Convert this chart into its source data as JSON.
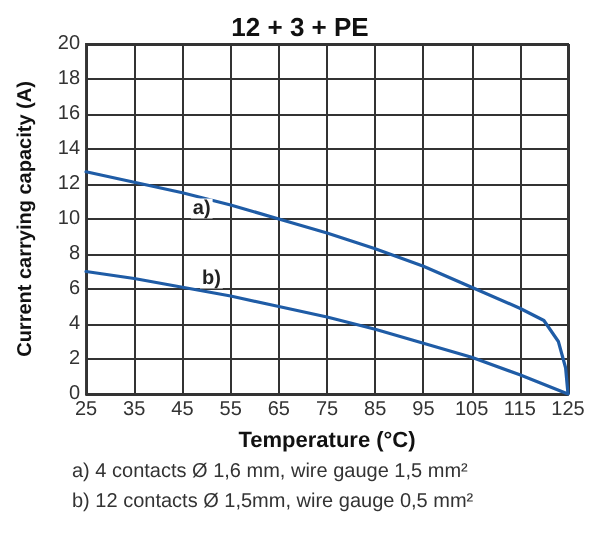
{
  "chart_data": {
    "type": "line",
    "title": "12 + 3 + PE",
    "xlabel": "Temperature (°C)",
    "ylabel": "Current carrying capacity (A)",
    "series": [
      {
        "color": "#1f5ca6",
        "x": [
          25,
          35,
          45,
          55,
          65,
          75,
          85,
          95,
          105,
          115,
          120,
          123,
          124.5,
          125
        ],
        "values": [
          12.7,
          12.1,
          11.5,
          10.8,
          10.0,
          9.2,
          8.3,
          7.3,
          6.1,
          4.9,
          4.2,
          3.0,
          1.5,
          0
        ]
      },
      {
        "color": "#1f5ca6",
        "x": [
          25,
          35,
          45,
          55,
          65,
          75,
          85,
          95,
          105,
          115,
          125
        ],
        "values": [
          7.0,
          6.6,
          6.1,
          5.6,
          5.0,
          4.4,
          3.7,
          2.9,
          2.1,
          1.1,
          0
        ]
      }
    ],
    "xlim": [
      25,
      125
    ],
    "xticks": [
      25,
      35,
      45,
      55,
      65,
      75,
      85,
      95,
      105,
      115,
      125
    ],
    "ylim": [
      0,
      20
    ],
    "yticks": [
      0,
      2,
      4,
      6,
      8,
      10,
      12,
      14,
      16,
      18,
      20
    ],
    "grid": true,
    "marker": "none",
    "line_style": "solid",
    "annotations": [
      {
        "text": "a)",
        "x": 49,
        "y": 10.6
      },
      {
        "text": "b)",
        "x": 51,
        "y": 6.6
      },
      "a) 4 contacts Ø 1,6 mm, wire gauge 1,5 mm²",
      "b) 12 contacts Ø 1,5mm, wire gauge 0,5 mm²"
    ]
  }
}
